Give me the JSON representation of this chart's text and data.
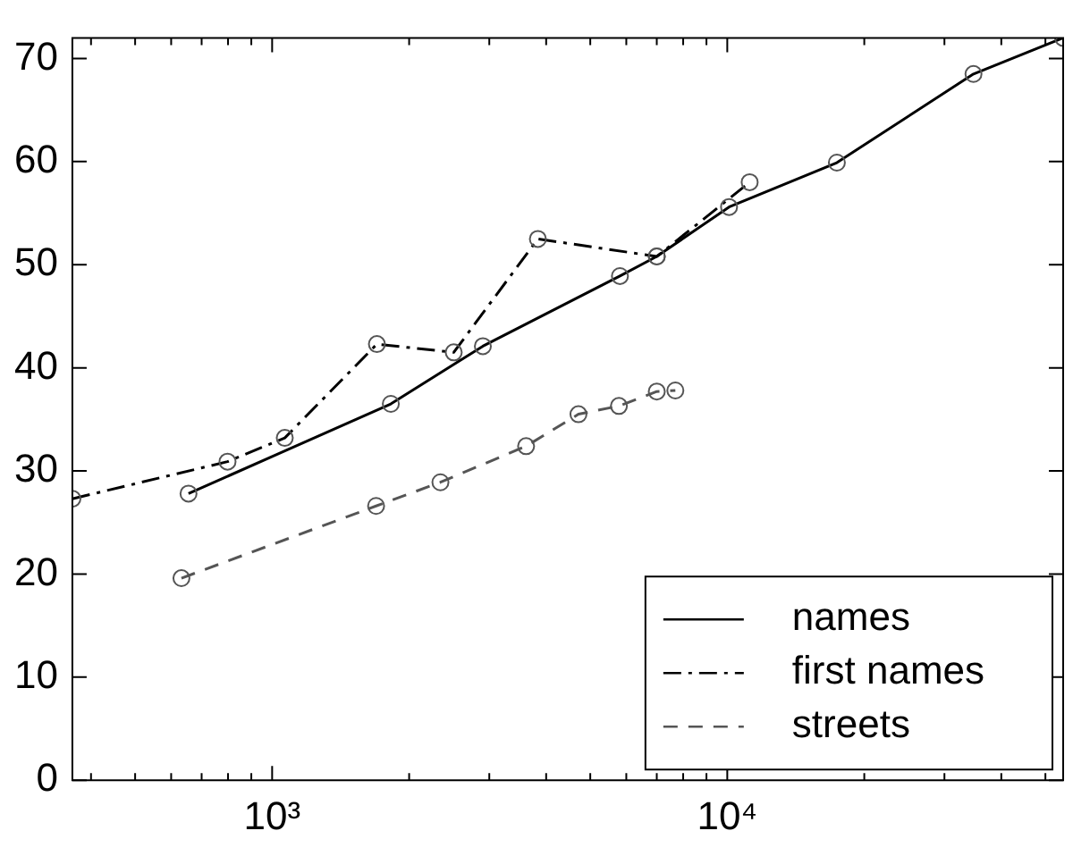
{
  "chart_data": {
    "type": "line",
    "log": "x",
    "xlim": [
      364,
      54700
    ],
    "ylim": [
      0,
      72
    ],
    "xticks": [
      {
        "value": 400,
        "label": null
      },
      {
        "value": 500,
        "label": null
      },
      {
        "value": 600,
        "label": null
      },
      {
        "value": 700,
        "label": null
      },
      {
        "value": 800,
        "label": null
      },
      {
        "value": 900,
        "label": null
      },
      {
        "value": 1000,
        "label": "10³"
      },
      {
        "value": 2000,
        "label": null
      },
      {
        "value": 3000,
        "label": null
      },
      {
        "value": 4000,
        "label": null
      },
      {
        "value": 5000,
        "label": null
      },
      {
        "value": 6000,
        "label": null
      },
      {
        "value": 7000,
        "label": null
      },
      {
        "value": 8000,
        "label": null
      },
      {
        "value": 9000,
        "label": null
      },
      {
        "value": 10000,
        "label": "10⁴"
      },
      {
        "value": 20000,
        "label": null
      },
      {
        "value": 30000,
        "label": null
      },
      {
        "value": 40000,
        "label": null
      },
      {
        "value": 50000,
        "label": null
      }
    ],
    "yticks": [
      0,
      10,
      20,
      30,
      40,
      50,
      60,
      70
    ],
    "grid": false,
    "legend": "bottom right",
    "marker": "circle",
    "series": [
      {
        "name": "names",
        "color": "#000000",
        "line_style": "solid",
        "x": [
          655,
          1823,
          2904,
          5810,
          7000,
          10090,
          17410,
          34750,
          54700
        ],
        "values": [
          27.8,
          36.5,
          42.1,
          48.9,
          50.8,
          55.6,
          59.9,
          68.5,
          72
        ]
      },
      {
        "name": "first names",
        "color": "#000000",
        "line_style": "dashdot",
        "x": [
          364,
          798,
          1066,
          1699,
          2506,
          3836,
          7000,
          11200
        ],
        "values": [
          27.3,
          30.9,
          33.2,
          42.3,
          41.5,
          52.5,
          50.8,
          58.0
        ]
      },
      {
        "name": "streets",
        "color": "#555555",
        "line_style": "dashed",
        "x": [
          632,
          1692,
          2343,
          3614,
          4710,
          5780,
          7000,
          7690
        ],
        "values": [
          19.6,
          26.6,
          28.9,
          32.4,
          35.5,
          36.3,
          37.7,
          37.8
        ]
      }
    ]
  }
}
